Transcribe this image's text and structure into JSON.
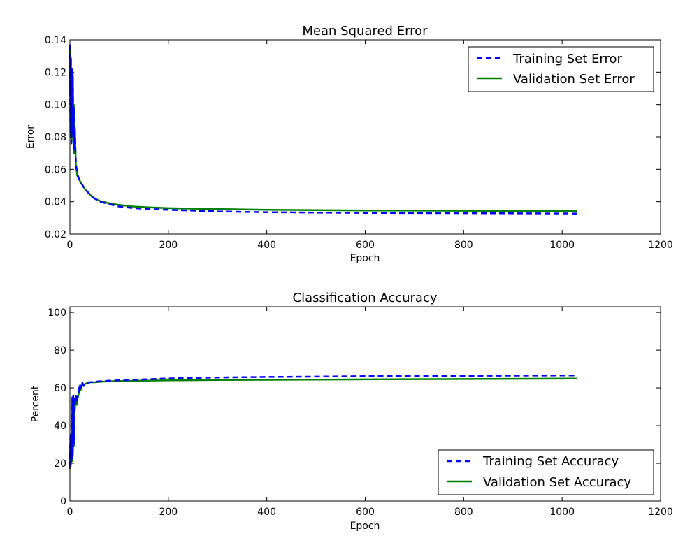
{
  "chart_data": [
    {
      "type": "line",
      "title": "Mean Squared Error",
      "xlabel": "Epoch",
      "ylabel": "Error",
      "xlim": [
        0,
        1200
      ],
      "ylim": [
        0.02,
        0.14
      ],
      "xticks": [
        0,
        200,
        400,
        600,
        800,
        1000,
        1200
      ],
      "yticks": [
        0.02,
        0.04,
        0.06,
        0.08,
        0.1,
        0.12,
        0.14
      ],
      "ytick_labels": [
        "0.02",
        "0.04",
        "0.06",
        "0.08",
        "0.10",
        "0.12",
        "0.14"
      ],
      "grid": false,
      "legend_position": "top-right",
      "series": [
        {
          "name": "Training Set Error",
          "color": "#0000ff",
          "style": "dashed",
          "x": [
            0,
            1,
            2,
            3,
            4,
            5,
            6,
            7,
            8,
            9,
            10,
            12,
            15,
            20,
            30,
            45,
            60,
            80,
            100,
            130,
            160,
            200,
            250,
            300,
            400,
            500,
            600,
            700,
            800,
            900,
            1030
          ],
          "y": [
            0.137,
            0.082,
            0.128,
            0.076,
            0.122,
            0.083,
            0.118,
            0.079,
            0.098,
            0.072,
            0.085,
            0.064,
            0.057,
            0.053,
            0.048,
            0.043,
            0.04,
            0.0385,
            0.037,
            0.036,
            0.0355,
            0.035,
            0.0345,
            0.034,
            0.0335,
            0.0333,
            0.0331,
            0.033,
            0.0329,
            0.0328,
            0.0327
          ]
        },
        {
          "name": "Validation Set Error",
          "color": "#008000",
          "style": "solid",
          "x": [
            0,
            1,
            2,
            3,
            4,
            5,
            6,
            7,
            8,
            9,
            10,
            12,
            15,
            20,
            30,
            45,
            60,
            80,
            100,
            130,
            160,
            200,
            250,
            300,
            400,
            500,
            600,
            700,
            800,
            900,
            1030
          ],
          "y": [
            0.136,
            0.08,
            0.129,
            0.078,
            0.121,
            0.082,
            0.119,
            0.077,
            0.1,
            0.07,
            0.086,
            0.063,
            0.056,
            0.053,
            0.048,
            0.043,
            0.0405,
            0.039,
            0.038,
            0.037,
            0.0365,
            0.036,
            0.0357,
            0.0355,
            0.035,
            0.0348,
            0.0346,
            0.0345,
            0.0344,
            0.0343,
            0.0342
          ]
        }
      ]
    },
    {
      "type": "line",
      "title": "Classification Accuracy",
      "xlabel": "Epoch",
      "ylabel": "Percent",
      "xlim": [
        0,
        1200
      ],
      "ylim": [
        0,
        103
      ],
      "xticks": [
        0,
        200,
        400,
        600,
        800,
        1000,
        1200
      ],
      "yticks": [
        0,
        20,
        40,
        60,
        80,
        100
      ],
      "ytick_labels": [
        "0",
        "20",
        "40",
        "60",
        "80",
        "100"
      ],
      "grid": false,
      "legend_position": "bottom-right",
      "series": [
        {
          "name": "Training Set Accuracy",
          "color": "#0000ff",
          "style": "dashed",
          "x": [
            0,
            1,
            2,
            3,
            4,
            5,
            6,
            7,
            8,
            9,
            10,
            12,
            14,
            16,
            18,
            20,
            22,
            25,
            28,
            30,
            35,
            40,
            50,
            60,
            80,
            100,
            150,
            200,
            300,
            400,
            500,
            600,
            700,
            800,
            900,
            1030
          ],
          "y": [
            18,
            35,
            20,
            33,
            22,
            55,
            25,
            56,
            30,
            55,
            50,
            56,
            52,
            56,
            58,
            62,
            60,
            63,
            61,
            62,
            62.5,
            63,
            63.2,
            63.5,
            63.8,
            64,
            64.5,
            65,
            65.5,
            65.8,
            66,
            66.2,
            66.3,
            66.4,
            66.5,
            66.6
          ]
        },
        {
          "name": "Validation Set Accuracy",
          "color": "#008000",
          "style": "solid",
          "x": [
            0,
            1,
            2,
            3,
            4,
            5,
            6,
            7,
            8,
            9,
            10,
            12,
            14,
            16,
            18,
            20,
            22,
            25,
            28,
            30,
            35,
            40,
            50,
            60,
            80,
            100,
            150,
            200,
            300,
            400,
            500,
            600,
            700,
            800,
            900,
            1030
          ],
          "y": [
            17,
            34,
            19,
            32,
            21,
            54,
            24,
            55,
            29,
            54,
            48,
            55,
            51,
            55,
            57,
            61,
            59,
            62.5,
            61,
            62,
            62.5,
            63,
            63,
            63.2,
            63.5,
            63.6,
            63.8,
            64,
            64.2,
            64.3,
            64.4,
            64.5,
            64.6,
            64.7,
            64.8,
            64.9
          ]
        }
      ]
    }
  ]
}
